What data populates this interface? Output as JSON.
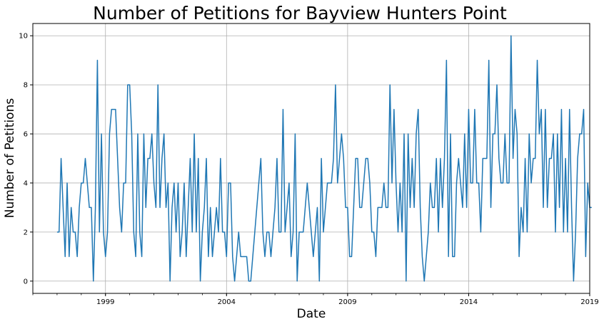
{
  "chart_data": {
    "type": "line",
    "title": "Number of Petitions for Bayview Hunters Point",
    "xlabel": "Date",
    "ylabel": "Number of Petitions",
    "x_start": "1997-01",
    "x_interval": "month",
    "xlim": [
      "1996-01",
      "2019-01"
    ],
    "ylim": [
      -0.5,
      10.5
    ],
    "x_ticks": [
      {
        "date": "1999-01",
        "label": "1999"
      },
      {
        "date": "2004-01",
        "label": "2004"
      },
      {
        "date": "2009-01",
        "label": "2009"
      },
      {
        "date": "2014-01",
        "label": "2014"
      },
      {
        "date": "2019-01",
        "label": "2019"
      }
    ],
    "y_ticks": [
      0,
      2,
      4,
      6,
      8,
      10
    ],
    "grid": true,
    "legend": "none",
    "line_color": "#1f77b4",
    "values": [
      2,
      2,
      5,
      3,
      1,
      4,
      1,
      3,
      2,
      2,
      1,
      3,
      4,
      4,
      5,
      4,
      3,
      3,
      0,
      3,
      9,
      2,
      6,
      2,
      1,
      2,
      6,
      7,
      7,
      7,
      5,
      3,
      2,
      4,
      4,
      8,
      8,
      6,
      2,
      1,
      6,
      2,
      1,
      6,
      3,
      5,
      5,
      6,
      4,
      3,
      8,
      3,
      5,
      6,
      3,
      4,
      0,
      3,
      4,
      2,
      4,
      1,
      2,
      4,
      1,
      3,
      5,
      2,
      6,
      2,
      5,
      0,
      2,
      3,
      5,
      1,
      3,
      1,
      2,
      3,
      2,
      5,
      2,
      2,
      1,
      4,
      4,
      1,
      0,
      1,
      2,
      1,
      1,
      1,
      1,
      0,
      0,
      1,
      2,
      3,
      4,
      5,
      2,
      1,
      2,
      2,
      1,
      2,
      3,
      5,
      2,
      2,
      7,
      2,
      3,
      4,
      1,
      2,
      6,
      0,
      2,
      2,
      2,
      3,
      4,
      3,
      2,
      1,
      2,
      3,
      0,
      5,
      2,
      3,
      4,
      4,
      4,
      5,
      8,
      4,
      5,
      6,
      5,
      3,
      3,
      1,
      1,
      3,
      5,
      5,
      3,
      3,
      4,
      5,
      5,
      4,
      2,
      2,
      1,
      3,
      3,
      3,
      4,
      3,
      3,
      8,
      4,
      7,
      4,
      2,
      4,
      2,
      6,
      0,
      6,
      3,
      5,
      3,
      6,
      7,
      3,
      1,
      0,
      1,
      2,
      4,
      3,
      3,
      5,
      2,
      5,
      3,
      5,
      9,
      1,
      6,
      1,
      1,
      4,
      5,
      4,
      3,
      6,
      3,
      7,
      4,
      4,
      7,
      4,
      4,
      2,
      5,
      5,
      5,
      9,
      3,
      6,
      6,
      8,
      5,
      4,
      4,
      6,
      4,
      4,
      10,
      5,
      7,
      6,
      1,
      3,
      2,
      5,
      2,
      6,
      4,
      5,
      5,
      9,
      6,
      7,
      3,
      7,
      3,
      5,
      5,
      6,
      2,
      6,
      3,
      7,
      2,
      5,
      2,
      7,
      3,
      0,
      2,
      5,
      6,
      6,
      7,
      1,
      4,
      3,
      3
    ]
  }
}
